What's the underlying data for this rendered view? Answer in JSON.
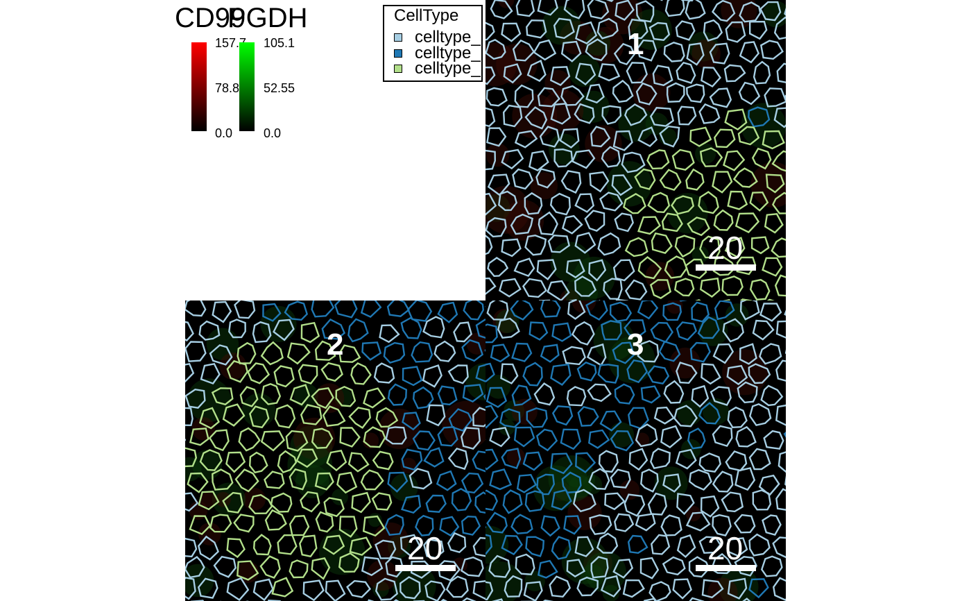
{
  "channels": [
    {
      "name": "CD99",
      "color": "#ff0000",
      "max_label": "157.7",
      "mid_label": "78.8",
      "min_label": "0.0"
    },
    {
      "name": "PGDH",
      "color": "#00ff00",
      "max_label": "105.1",
      "mid_label": "52.55",
      "min_label": "0.0"
    }
  ],
  "celltype_legend": {
    "title": "CellType",
    "items": [
      {
        "label": "celltype_",
        "color": "#a6cee3"
      },
      {
        "label": "celltype_",
        "color": "#1f78b4"
      },
      {
        "label": "celltype_",
        "color": "#b2df8a"
      }
    ]
  },
  "panels": [
    {
      "label": "1",
      "scale_label": "20"
    },
    {
      "label": "2",
      "scale_label": "20"
    },
    {
      "label": "3",
      "scale_label": "20"
    }
  ]
}
